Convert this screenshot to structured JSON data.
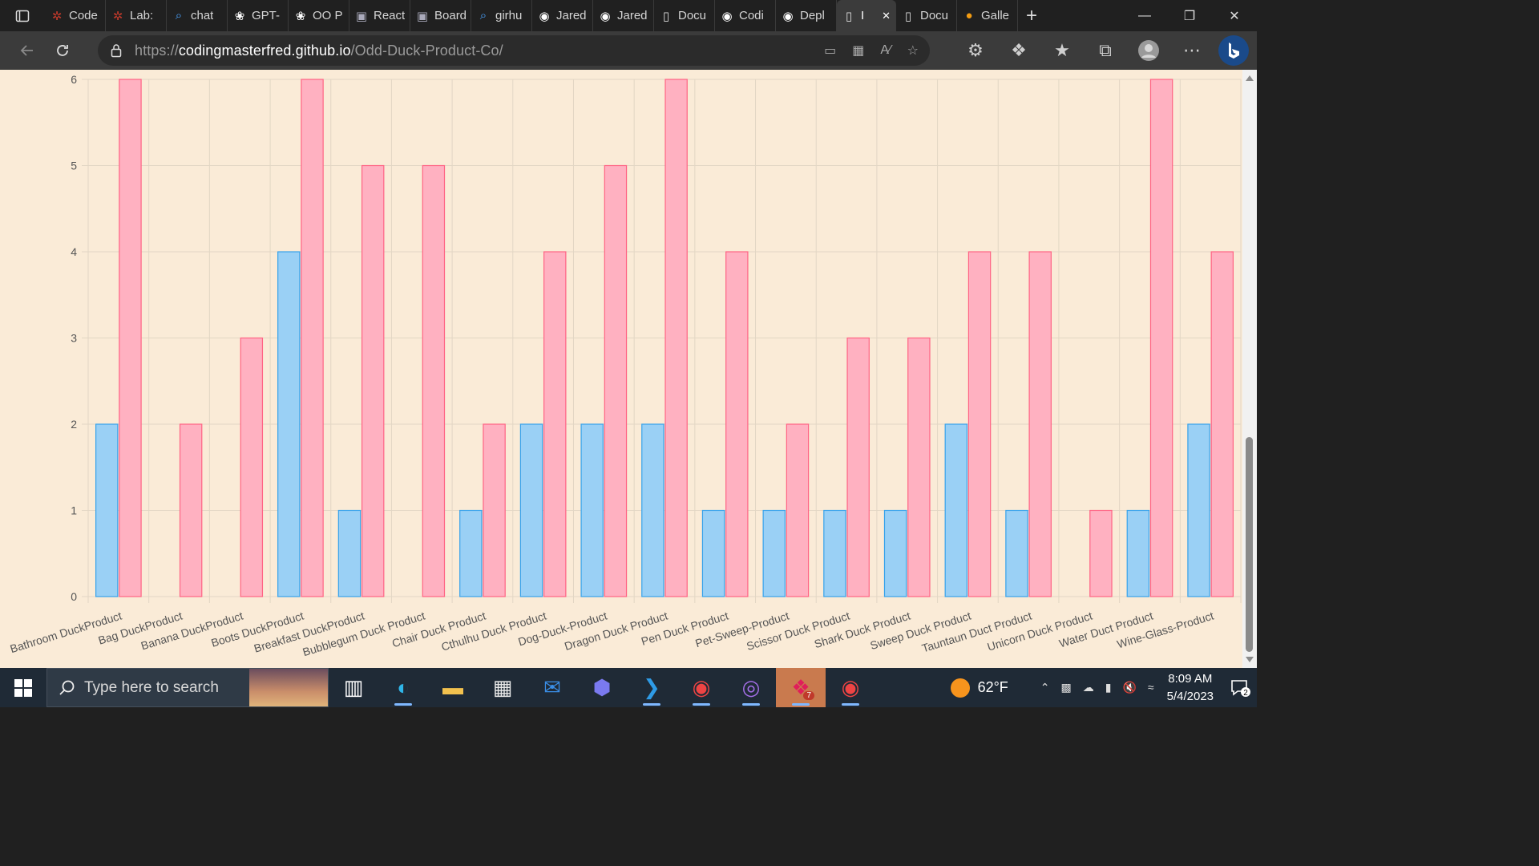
{
  "browser": {
    "tabs": [
      {
        "title": "Code",
        "icon": "red-compass-icon",
        "active": false
      },
      {
        "title": "Lab: ",
        "icon": "red-compass-icon",
        "active": false
      },
      {
        "title": "chat",
        "icon": "search-icon",
        "active": false
      },
      {
        "title": "GPT-",
        "icon": "openai-icon",
        "active": false
      },
      {
        "title": "OO P",
        "icon": "openai-icon",
        "active": false
      },
      {
        "title": "React",
        "icon": "trello-icon",
        "active": false
      },
      {
        "title": "Board",
        "icon": "trello-icon",
        "active": false
      },
      {
        "title": "girhu",
        "icon": "search-icon",
        "active": false
      },
      {
        "title": "Jared",
        "icon": "github-icon",
        "active": false
      },
      {
        "title": "Jared",
        "icon": "github-icon",
        "active": false
      },
      {
        "title": "Docu",
        "icon": "document-icon",
        "active": false
      },
      {
        "title": "Codi",
        "icon": "github-icon",
        "active": false
      },
      {
        "title": "Depl",
        "icon": "github-icon",
        "active": false
      },
      {
        "title": "I",
        "icon": "document-icon",
        "active": true
      },
      {
        "title": "Docu",
        "icon": "document-icon",
        "active": false
      },
      {
        "title": "Galle",
        "icon": "gallery-icon",
        "active": false
      }
    ],
    "url_prefix": "https://",
    "url_host": "codingmasterfred.github.io",
    "url_path": "/Odd-Duck-Product-Co/"
  },
  "chart_data": {
    "type": "bar",
    "categories": [
      "Bathroom DuckProduct",
      "Bag DuckProduct",
      "Banana DuckProduct",
      "Boots DuckProduct",
      "Breakfast DuckProduct",
      "Bubblegum Duck Product",
      "Chair Duck Product",
      "Cthulhu Duck Product",
      "Dog-Duck-Product",
      "Dragon Duck Product",
      "Pen Duck Product",
      "Pet-Sweep-Product",
      "Scissor Duck Product",
      "Shark Duck Product",
      "Sweep Duck Product",
      "Tauntaun Duct Product",
      "Unicorn Duck Product",
      "Water Duct Product",
      "Wine-Glass-Product"
    ],
    "series": [
      {
        "color": "#9ad0f5",
        "border": "#36a2eb",
        "values": [
          2,
          0,
          0,
          4,
          1,
          0,
          1,
          2,
          2,
          2,
          1,
          1,
          1,
          1,
          2,
          1,
          0,
          1,
          2
        ]
      },
      {
        "color": "#ffb1c1",
        "border": "#ff6384",
        "values": [
          6,
          2,
          3,
          6,
          5,
          5,
          2,
          4,
          5,
          6,
          4,
          2,
          3,
          3,
          4,
          4,
          1,
          6,
          4
        ]
      }
    ],
    "ylim": [
      0,
      6
    ],
    "yticks": [
      0,
      1,
      2,
      3,
      4,
      5,
      6
    ],
    "grid": true
  },
  "taskbar": {
    "search_placeholder": "Type here to search",
    "weather": "62°F",
    "time": "8:09 AM",
    "date": "5/4/2023",
    "notification_count": "2",
    "apps": [
      {
        "name": "task-view-icon",
        "running": false
      },
      {
        "name": "edge-icon",
        "running": true
      },
      {
        "name": "file-explorer-icon",
        "running": false
      },
      {
        "name": "microsoft-store-icon",
        "running": false
      },
      {
        "name": "mail-icon",
        "running": false
      },
      {
        "name": "power-automate-icon",
        "running": false
      },
      {
        "name": "vscode-icon",
        "running": true
      },
      {
        "name": "chrome-profile-icon",
        "running": true
      },
      {
        "name": "github-desktop-icon",
        "running": true
      },
      {
        "name": "slack-icon",
        "running": true,
        "badge": "7"
      },
      {
        "name": "chrome-profile-2-icon",
        "running": true
      }
    ]
  }
}
